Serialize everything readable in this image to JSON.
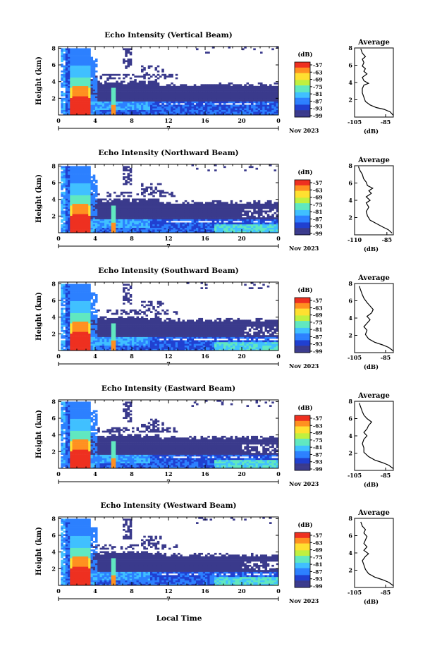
{
  "chart_data": [
    {
      "type": "heatmap",
      "title": "Echo Intensity (Vertical Beam)",
      "ylabel": "Height (km)",
      "x_ticks": [
        "0",
        "4",
        "8",
        "12",
        "16",
        "20",
        "0"
      ],
      "day_label": "7",
      "date_label": "Nov 2023",
      "y_ticks": [
        "2",
        "4",
        "6",
        "8"
      ],
      "colorbar": {
        "unit": "(dB)",
        "labels": [
          "-57",
          "-63",
          "-69",
          "-75",
          "-81",
          "-87",
          "-93",
          "-99"
        ]
      },
      "average": {
        "title": "Average",
        "xlabel": "(dB)",
        "xticks": [
          "-105",
          "-85"
        ],
        "xlim": [
          -105,
          -80
        ],
        "ylim": [
          0,
          8
        ],
        "points": [
          [
            -80,
            0.2
          ],
          [
            -82,
            0.6
          ],
          [
            -86,
            0.9
          ],
          [
            -91,
            1.1
          ],
          [
            -95,
            1.4
          ],
          [
            -98,
            1.8
          ],
          [
            -99,
            2.3
          ],
          [
            -100,
            2.8
          ],
          [
            -100,
            3.3
          ],
          [
            -99,
            3.7
          ],
          [
            -96,
            3.9
          ],
          [
            -99,
            4.2
          ],
          [
            -100,
            4.6
          ],
          [
            -97,
            5.0
          ],
          [
            -99,
            5.3
          ],
          [
            -98,
            5.6
          ],
          [
            -100,
            5.9
          ],
          [
            -99,
            6.3
          ],
          [
            -100,
            6.7
          ],
          [
            -98,
            7.0
          ],
          [
            -100,
            7.4
          ],
          [
            -101,
            7.9
          ]
        ]
      }
    },
    {
      "type": "heatmap",
      "title": "Echo Intensity (Northward Beam)",
      "ylabel": "Height (km)",
      "x_ticks": [
        "0",
        "4",
        "8",
        "12",
        "16",
        "20",
        "0"
      ],
      "day_label": "7",
      "date_label": "Nov 2023",
      "y_ticks": [
        "2",
        "4",
        "6",
        "8"
      ],
      "colorbar": {
        "unit": "(dB)",
        "labels": [
          "-57",
          "-63",
          "-69",
          "-75",
          "-81",
          "-87",
          "-93",
          "-99"
        ]
      },
      "average": {
        "title": "Average",
        "xlabel": "(dB)",
        "xticks": [
          "-110",
          "-85"
        ],
        "xlim": [
          -110,
          -80
        ],
        "ylim": [
          0,
          8
        ],
        "points": [
          [
            -81,
            0.2
          ],
          [
            -84,
            0.6
          ],
          [
            -88,
            0.9
          ],
          [
            -93,
            1.3
          ],
          [
            -98,
            1.7
          ],
          [
            -100,
            2.2
          ],
          [
            -101,
            2.7
          ],
          [
            -99,
            3.2
          ],
          [
            -101,
            3.7
          ],
          [
            -98,
            4.0
          ],
          [
            -101,
            4.4
          ],
          [
            -97,
            4.8
          ],
          [
            -99,
            5.1
          ],
          [
            -96,
            5.4
          ],
          [
            -100,
            5.7
          ],
          [
            -101,
            6.1
          ],
          [
            -103,
            6.5
          ],
          [
            -104,
            7.0
          ],
          [
            -106,
            7.5
          ],
          [
            -107,
            7.9
          ]
        ]
      }
    },
    {
      "type": "heatmap",
      "title": "Echo Intensity (Southward Beam)",
      "ylabel": "Height (km)",
      "x_ticks": [
        "0",
        "4",
        "8",
        "12",
        "16",
        "20",
        "0"
      ],
      "day_label": "7",
      "date_label": "Nov 2023",
      "y_ticks": [
        "2",
        "4",
        "6",
        "8"
      ],
      "colorbar": {
        "unit": "(dB)",
        "labels": [
          "-57",
          "-63",
          "-69",
          "-75",
          "-81",
          "-87",
          "-93",
          "-99"
        ]
      },
      "average": {
        "title": "Average",
        "xlabel": "(dB)",
        "xticks": [
          "-105",
          "-85"
        ],
        "xlim": [
          -105,
          -80
        ],
        "ylim": [
          0,
          8
        ],
        "points": [
          [
            -80,
            0.2
          ],
          [
            -83,
            0.6
          ],
          [
            -87,
            0.9
          ],
          [
            -92,
            1.2
          ],
          [
            -96,
            1.6
          ],
          [
            -98,
            2.1
          ],
          [
            -97,
            2.6
          ],
          [
            -99,
            3.0
          ],
          [
            -97,
            3.4
          ],
          [
            -95,
            3.8
          ],
          [
            -97,
            4.2
          ],
          [
            -94,
            4.6
          ],
          [
            -93,
            5.0
          ],
          [
            -95,
            5.4
          ],
          [
            -97,
            5.8
          ],
          [
            -99,
            6.3
          ],
          [
            -100,
            6.7
          ],
          [
            -101,
            7.2
          ],
          [
            -102,
            7.7
          ]
        ]
      }
    },
    {
      "type": "heatmap",
      "title": "Echo Intensity (Eastward Beam)",
      "ylabel": "Height (km)",
      "x_ticks": [
        "0",
        "4",
        "8",
        "12",
        "16",
        "20",
        "0"
      ],
      "day_label": "7",
      "date_label": "Nov 2023",
      "y_ticks": [
        "2",
        "4",
        "6",
        "8"
      ],
      "colorbar": {
        "unit": "(dB)",
        "labels": [
          "-57",
          "-63",
          "-69",
          "-75",
          "-81",
          "-87",
          "-93",
          "-99"
        ]
      },
      "average": {
        "title": "Average",
        "xlabel": "(dB)",
        "xticks": [
          "-105",
          "-85"
        ],
        "xlim": [
          -105,
          -80
        ],
        "ylim": [
          0,
          8
        ],
        "points": [
          [
            -80,
            0.2
          ],
          [
            -83,
            0.6
          ],
          [
            -87,
            0.9
          ],
          [
            -92,
            1.2
          ],
          [
            -96,
            1.6
          ],
          [
            -99,
            2.1
          ],
          [
            -99,
            2.6
          ],
          [
            -100,
            3.1
          ],
          [
            -99,
            3.6
          ],
          [
            -97,
            4.0
          ],
          [
            -99,
            4.4
          ],
          [
            -97,
            4.8
          ],
          [
            -96,
            5.2
          ],
          [
            -94,
            5.6
          ],
          [
            -97,
            6.0
          ],
          [
            -99,
            6.4
          ],
          [
            -100,
            6.8
          ],
          [
            -101,
            7.3
          ],
          [
            -102,
            7.8
          ]
        ]
      }
    },
    {
      "type": "heatmap",
      "title": "Echo Intensity (Westward Beam)",
      "ylabel": "Height (km)",
      "x_ticks": [
        "0",
        "4",
        "8",
        "12",
        "16",
        "20",
        "0"
      ],
      "day_label": "7",
      "date_label": "Nov 2023",
      "y_ticks": [
        "2",
        "4",
        "6",
        "8"
      ],
      "colorbar": {
        "unit": "(dB)",
        "labels": [
          "-57",
          "-63",
          "-69",
          "-75",
          "-81",
          "-87",
          "-93",
          "-99"
        ]
      },
      "average": {
        "title": "Average",
        "xlabel": "(dB)",
        "xticks": [
          "-105",
          "-85"
        ],
        "xlim": [
          -105,
          -80
        ],
        "ylim": [
          0,
          8
        ],
        "points": [
          [
            -80,
            0.2
          ],
          [
            -83,
            0.6
          ],
          [
            -87,
            0.9
          ],
          [
            -92,
            1.2
          ],
          [
            -96,
            1.6
          ],
          [
            -98,
            2.1
          ],
          [
            -99,
            2.6
          ],
          [
            -100,
            3.1
          ],
          [
            -98,
            3.6
          ],
          [
            -96,
            3.9
          ],
          [
            -99,
            4.3
          ],
          [
            -97,
            4.7
          ],
          [
            -99,
            5.1
          ],
          [
            -98,
            5.5
          ],
          [
            -97,
            5.9
          ],
          [
            -99,
            6.3
          ],
          [
            -98,
            6.7
          ],
          [
            -100,
            7.1
          ],
          [
            -101,
            7.6
          ]
        ]
      }
    }
  ],
  "footer_xlabel": "Local Time",
  "colors": [
    "#3a3a8c",
    "#2040d0",
    "#2c80ff",
    "#40c0ff",
    "#60e8c0",
    "#c0f040",
    "#ffe030",
    "#ff9020",
    "#ee3020"
  ]
}
